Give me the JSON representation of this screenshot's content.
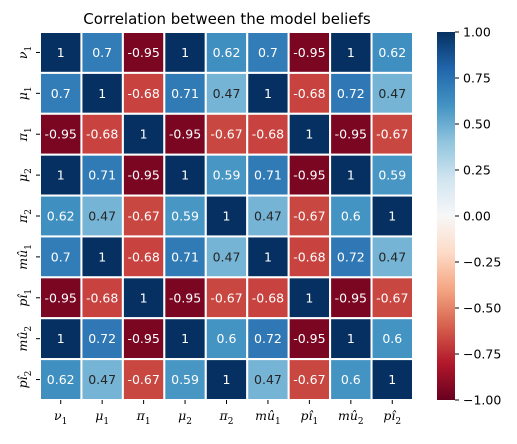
{
  "chart_data": {
    "type": "heatmap",
    "title": "Correlation between the model beliefs",
    "xlabel": "",
    "ylabel": "",
    "labels": [
      {
        "base": "ν",
        "hat": false,
        "sub": "1"
      },
      {
        "base": "μ",
        "hat": false,
        "sub": "1"
      },
      {
        "base": "π",
        "hat": false,
        "sub": "1"
      },
      {
        "base": "μ",
        "hat": false,
        "sub": "2"
      },
      {
        "base": "π",
        "hat": false,
        "sub": "2"
      },
      {
        "base": "mu",
        "hat": true,
        "sub": "1"
      },
      {
        "base": "pi",
        "hat": true,
        "sub": "1"
      },
      {
        "base": "mu",
        "hat": true,
        "sub": "2"
      },
      {
        "base": "pi",
        "hat": true,
        "sub": "2"
      }
    ],
    "values": [
      [
        1,
        0.7,
        -0.95,
        1,
        0.62,
        0.7,
        -0.95,
        1,
        0.62
      ],
      [
        0.7,
        1,
        -0.68,
        0.71,
        0.47,
        1,
        -0.68,
        0.72,
        0.47
      ],
      [
        -0.95,
        -0.68,
        1,
        -0.95,
        -0.67,
        -0.68,
        1,
        -0.95,
        -0.67
      ],
      [
        1,
        0.71,
        -0.95,
        1,
        0.59,
        0.71,
        -0.95,
        1,
        0.59
      ],
      [
        0.62,
        0.47,
        -0.67,
        0.59,
        1,
        0.47,
        -0.67,
        0.6,
        1
      ],
      [
        0.7,
        1,
        -0.68,
        0.71,
        0.47,
        1,
        -0.68,
        0.72,
        0.47
      ],
      [
        -0.95,
        -0.68,
        1,
        -0.95,
        -0.67,
        -0.68,
        1,
        -0.95,
        -0.67
      ],
      [
        1,
        0.72,
        -0.95,
        1,
        0.6,
        0.72,
        -0.95,
        1,
        0.6
      ],
      [
        0.62,
        0.47,
        -0.67,
        0.59,
        1,
        0.47,
        -0.67,
        0.6,
        1
      ]
    ],
    "annotations": [
      [
        "1",
        "0.7",
        "-0.95",
        "1",
        "0.62",
        "0.7",
        "-0.95",
        "1",
        "0.62"
      ],
      [
        "0.7",
        "1",
        "-0.68",
        "0.71",
        "0.47",
        "1",
        "-0.68",
        "0.72",
        "0.47"
      ],
      [
        "-0.95",
        "-0.68",
        "1",
        "-0.95",
        "-0.67",
        "-0.68",
        "1",
        "-0.95",
        "-0.67"
      ],
      [
        "1",
        "0.71",
        "-0.95",
        "1",
        "0.59",
        "0.71",
        "-0.95",
        "1",
        "0.59"
      ],
      [
        "0.62",
        "0.47",
        "-0.67",
        "0.59",
        "1",
        "0.47",
        "-0.67",
        "0.6",
        "1"
      ],
      [
        "0.7",
        "1",
        "-0.68",
        "0.71",
        "0.47",
        "1",
        "-0.68",
        "0.72",
        "0.47"
      ],
      [
        "-0.95",
        "-0.68",
        "1",
        "-0.95",
        "-0.67",
        "-0.68",
        "1",
        "-0.95",
        "-0.67"
      ],
      [
        "1",
        "0.72",
        "-0.95",
        "1",
        "0.6",
        "0.72",
        "-0.95",
        "1",
        "0.6"
      ],
      [
        "0.62",
        "0.47",
        "-0.67",
        "0.59",
        "1",
        "0.47",
        "-0.67",
        "0.6",
        "1"
      ]
    ],
    "colormap": "RdBu",
    "vmin": -1.0,
    "vmax": 1.0,
    "colorbar_ticks": [
      "1.00",
      "0.75",
      "0.50",
      "0.25",
      "0.00",
      "−0.25",
      "−0.50",
      "−0.75",
      "−1.00"
    ],
    "grid": false,
    "cell_border_color": "#ffffff"
  }
}
